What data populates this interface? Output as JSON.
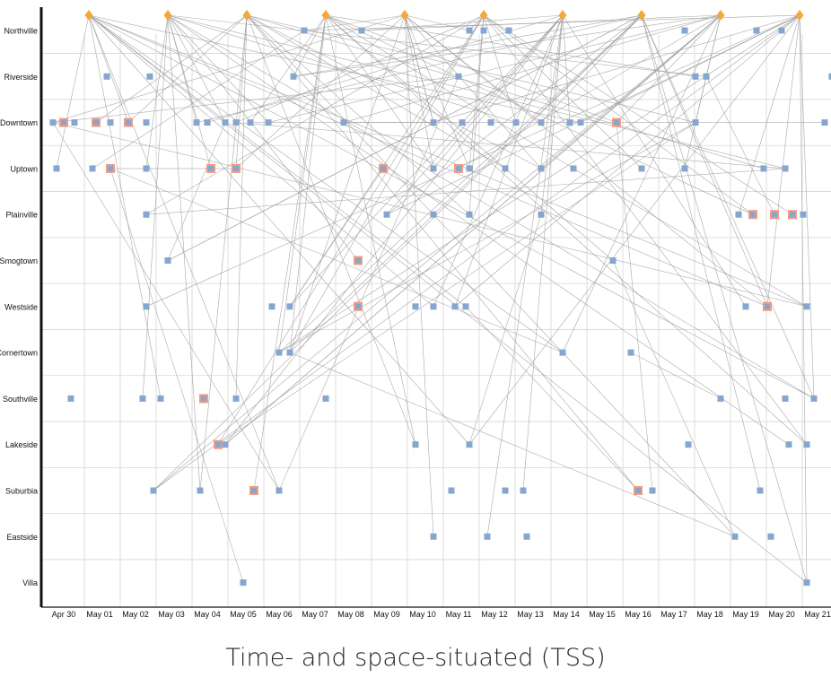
{
  "caption": "Time- and space-situated (TSS)",
  "chart_data": {
    "type": "scatter",
    "caption": "Time- and space-situated (TSS)",
    "x_ticks": [
      "Apr 30",
      "May 01",
      "May 02",
      "May 03",
      "May 04",
      "May 05",
      "May 06",
      "May 07",
      "May 08",
      "May 09",
      "May 10",
      "May 11",
      "May 12",
      "May 13",
      "May 14",
      "May 15",
      "May 16",
      "May 17",
      "May 18",
      "May 19",
      "May 20",
      "May 21"
    ],
    "categories": [
      "Northville",
      "Riverside",
      "Downtown",
      "Uptown",
      "Plainville",
      "Smogtown",
      "Westside",
      "Cornertown",
      "Southville",
      "Lakeside",
      "Suburbia",
      "Eastside",
      "Villa"
    ],
    "grid": true,
    "colors": {
      "source": "#f4a83a",
      "event": "#86a6cf",
      "highlight": "#f49a7f",
      "link": "#9a9a9a",
      "grid": "#d6d6d6"
    },
    "sources": [
      {
        "x": 0.7,
        "category": "Northville"
      },
      {
        "x": 2.9,
        "category": "Northville"
      },
      {
        "x": 5.1,
        "category": "Northville"
      },
      {
        "x": 7.3,
        "category": "Northville"
      },
      {
        "x": 9.5,
        "category": "Northville"
      },
      {
        "x": 11.7,
        "category": "Northville"
      },
      {
        "x": 13.9,
        "category": "Northville"
      },
      {
        "x": 16.1,
        "category": "Northville"
      },
      {
        "x": 18.3,
        "category": "Northville"
      },
      {
        "x": 20.5,
        "category": "Northville"
      }
    ],
    "events": [
      {
        "x": 6.7,
        "category": "Northville"
      },
      {
        "x": 8.3,
        "category": "Northville"
      },
      {
        "x": 11.3,
        "category": "Northville"
      },
      {
        "x": 11.7,
        "category": "Northville"
      },
      {
        "x": 12.4,
        "category": "Northville"
      },
      {
        "x": 17.3,
        "category": "Northville"
      },
      {
        "x": 19.3,
        "category": "Northville"
      },
      {
        "x": 20.0,
        "category": "Northville"
      },
      {
        "x": 1.2,
        "category": "Riverside"
      },
      {
        "x": 2.4,
        "category": "Riverside"
      },
      {
        "x": 6.4,
        "category": "Riverside"
      },
      {
        "x": 11.0,
        "category": "Riverside"
      },
      {
        "x": 17.6,
        "category": "Riverside"
      },
      {
        "x": 17.9,
        "category": "Riverside"
      },
      {
        "x": 21.4,
        "category": "Riverside"
      },
      {
        "x": -0.3,
        "category": "Downtown"
      },
      {
        "x": 0.0,
        "category": "Downtown",
        "highlight": true
      },
      {
        "x": 0.3,
        "category": "Downtown"
      },
      {
        "x": 0.9,
        "category": "Downtown",
        "highlight": true
      },
      {
        "x": 1.3,
        "category": "Downtown"
      },
      {
        "x": 1.8,
        "category": "Downtown",
        "highlight": true
      },
      {
        "x": 2.3,
        "category": "Downtown"
      },
      {
        "x": 3.7,
        "category": "Downtown"
      },
      {
        "x": 4.0,
        "category": "Downtown"
      },
      {
        "x": 4.5,
        "category": "Downtown"
      },
      {
        "x": 4.8,
        "category": "Downtown"
      },
      {
        "x": 5.2,
        "category": "Downtown"
      },
      {
        "x": 5.7,
        "category": "Downtown"
      },
      {
        "x": 7.8,
        "category": "Downtown"
      },
      {
        "x": 10.3,
        "category": "Downtown"
      },
      {
        "x": 11.1,
        "category": "Downtown"
      },
      {
        "x": 11.9,
        "category": "Downtown"
      },
      {
        "x": 12.6,
        "category": "Downtown"
      },
      {
        "x": 13.3,
        "category": "Downtown"
      },
      {
        "x": 14.1,
        "category": "Downtown"
      },
      {
        "x": 14.4,
        "category": "Downtown"
      },
      {
        "x": 15.4,
        "category": "Downtown",
        "highlight": true
      },
      {
        "x": 17.6,
        "category": "Downtown"
      },
      {
        "x": 21.2,
        "category": "Downtown"
      },
      {
        "x": -0.2,
        "category": "Uptown"
      },
      {
        "x": 0.8,
        "category": "Uptown"
      },
      {
        "x": 1.3,
        "category": "Uptown",
        "highlight": true
      },
      {
        "x": 2.3,
        "category": "Uptown"
      },
      {
        "x": 4.1,
        "category": "Uptown",
        "highlight": true
      },
      {
        "x": 4.8,
        "category": "Uptown",
        "highlight": true
      },
      {
        "x": 8.9,
        "category": "Uptown",
        "highlight": true
      },
      {
        "x": 10.3,
        "category": "Uptown"
      },
      {
        "x": 11.0,
        "category": "Uptown",
        "highlight": true
      },
      {
        "x": 11.3,
        "category": "Uptown"
      },
      {
        "x": 12.3,
        "category": "Uptown"
      },
      {
        "x": 13.3,
        "category": "Uptown"
      },
      {
        "x": 14.2,
        "category": "Uptown"
      },
      {
        "x": 16.1,
        "category": "Uptown"
      },
      {
        "x": 17.3,
        "category": "Uptown"
      },
      {
        "x": 19.5,
        "category": "Uptown"
      },
      {
        "x": 20.1,
        "category": "Uptown"
      },
      {
        "x": 2.3,
        "category": "Plainville"
      },
      {
        "x": 9.0,
        "category": "Plainville"
      },
      {
        "x": 10.3,
        "category": "Plainville"
      },
      {
        "x": 11.3,
        "category": "Plainville"
      },
      {
        "x": 13.3,
        "category": "Plainville"
      },
      {
        "x": 18.8,
        "category": "Plainville"
      },
      {
        "x": 19.2,
        "category": "Plainville",
        "highlight": true
      },
      {
        "x": 19.8,
        "category": "Plainville",
        "highlight": true
      },
      {
        "x": 20.3,
        "category": "Plainville",
        "highlight": true
      },
      {
        "x": 20.6,
        "category": "Plainville"
      },
      {
        "x": 2.9,
        "category": "Smogtown"
      },
      {
        "x": 8.2,
        "category": "Smogtown",
        "highlight": true
      },
      {
        "x": 15.3,
        "category": "Smogtown"
      },
      {
        "x": 2.3,
        "category": "Westside"
      },
      {
        "x": 5.8,
        "category": "Westside"
      },
      {
        "x": 6.3,
        "category": "Westside"
      },
      {
        "x": 8.2,
        "category": "Westside",
        "highlight": true
      },
      {
        "x": 9.8,
        "category": "Westside"
      },
      {
        "x": 10.3,
        "category": "Westside"
      },
      {
        "x": 10.9,
        "category": "Westside"
      },
      {
        "x": 11.2,
        "category": "Westside"
      },
      {
        "x": 19.0,
        "category": "Westside"
      },
      {
        "x": 19.6,
        "category": "Westside",
        "highlight": true
      },
      {
        "x": 20.7,
        "category": "Westside"
      },
      {
        "x": 6.0,
        "category": "Cornertown"
      },
      {
        "x": 6.3,
        "category": "Cornertown"
      },
      {
        "x": 13.9,
        "category": "Cornertown"
      },
      {
        "x": 15.8,
        "category": "Cornertown"
      },
      {
        "x": 0.2,
        "category": "Southville"
      },
      {
        "x": 2.2,
        "category": "Southville"
      },
      {
        "x": 2.7,
        "category": "Southville"
      },
      {
        "x": 3.9,
        "category": "Southville",
        "highlight": true
      },
      {
        "x": 4.8,
        "category": "Southville"
      },
      {
        "x": 7.3,
        "category": "Southville"
      },
      {
        "x": 18.3,
        "category": "Southville"
      },
      {
        "x": 20.1,
        "category": "Southville"
      },
      {
        "x": 20.9,
        "category": "Southville"
      },
      {
        "x": 4.3,
        "category": "Lakeside",
        "highlight": true
      },
      {
        "x": 4.5,
        "category": "Lakeside"
      },
      {
        "x": 9.8,
        "category": "Lakeside"
      },
      {
        "x": 11.3,
        "category": "Lakeside"
      },
      {
        "x": 17.4,
        "category": "Lakeside"
      },
      {
        "x": 20.2,
        "category": "Lakeside"
      },
      {
        "x": 20.7,
        "category": "Lakeside"
      },
      {
        "x": 2.5,
        "category": "Suburbia"
      },
      {
        "x": 3.8,
        "category": "Suburbia"
      },
      {
        "x": 5.3,
        "category": "Suburbia",
        "highlight": true
      },
      {
        "x": 6.0,
        "category": "Suburbia"
      },
      {
        "x": 10.8,
        "category": "Suburbia"
      },
      {
        "x": 12.3,
        "category": "Suburbia"
      },
      {
        "x": 12.8,
        "category": "Suburbia"
      },
      {
        "x": 16.0,
        "category": "Suburbia",
        "highlight": true
      },
      {
        "x": 16.4,
        "category": "Suburbia"
      },
      {
        "x": 19.4,
        "category": "Suburbia"
      },
      {
        "x": 10.3,
        "category": "Eastside"
      },
      {
        "x": 11.8,
        "category": "Eastside"
      },
      {
        "x": 12.9,
        "category": "Eastside"
      },
      {
        "x": 18.7,
        "category": "Eastside"
      },
      {
        "x": 19.7,
        "category": "Eastside"
      },
      {
        "x": 5.0,
        "category": "Villa"
      },
      {
        "x": 20.7,
        "category": "Villa"
      }
    ]
  }
}
